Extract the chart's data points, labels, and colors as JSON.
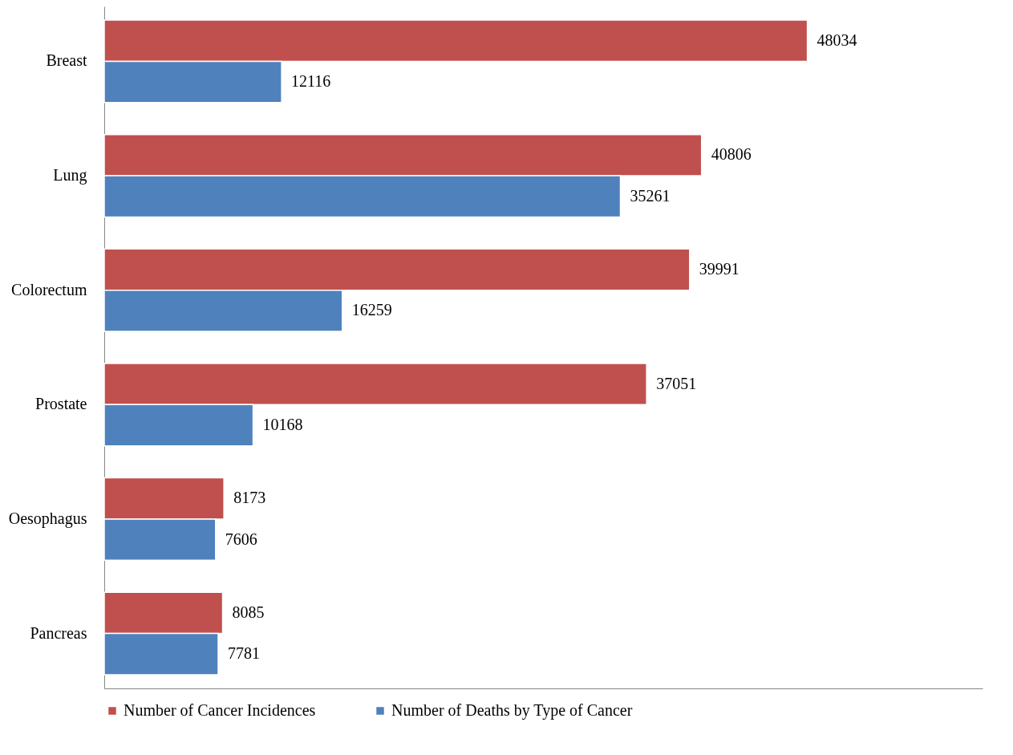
{
  "chart_data": {
    "type": "bar",
    "orientation": "horizontal",
    "categories": [
      "Breast",
      "Lung",
      "Colorectum",
      "Prostate",
      "Oesophagus",
      "Pancreas"
    ],
    "series": [
      {
        "name": "Number of Cancer Incidences",
        "color": "#c0504d",
        "values": [
          48034,
          40806,
          39991,
          37051,
          8173,
          8085
        ]
      },
      {
        "name": "Number of Deaths by Type of Cancer",
        "color": "#4f81bd",
        "values": [
          12116,
          35261,
          16259,
          10168,
          7606,
          7781
        ]
      }
    ],
    "xlim": [
      0,
      60000
    ],
    "tick_labels": "y",
    "data_labels": true,
    "grid": false,
    "legend": "bottom"
  }
}
